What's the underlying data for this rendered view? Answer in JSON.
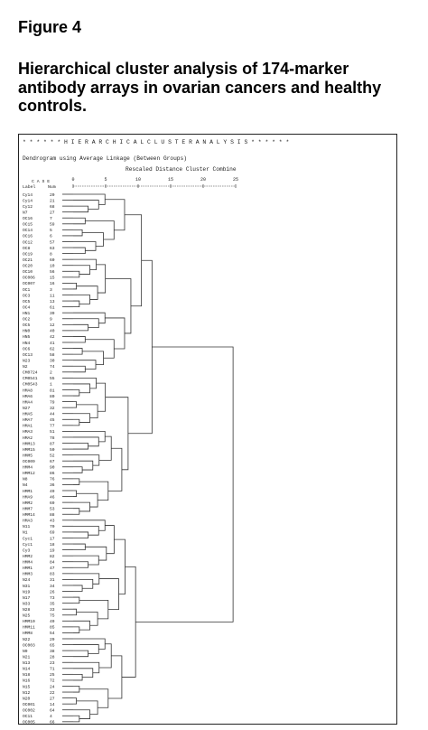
{
  "figure": {
    "label": "Figure 4",
    "title": "Hierarchical cluster analysis of 174-marker antibody arrays in ovarian cancers and healthy controls."
  },
  "dendrogram": {
    "banner": "* * * * * * H I E R A R C H I C A L   C L U S T E R   A N A L Y S I S * * * * * *",
    "method_line": "Dendrogram using Average Linkage (Between Groups)",
    "scale_caption": "Rescaled Distance Cluster Combine",
    "header_case": "C A S E",
    "header_label": "Label",
    "header_num": "Num",
    "axis_ticks": [
      "0",
      "5",
      "10",
      "15",
      "20",
      "25"
    ],
    "cases": [
      {
        "label": "Cy14",
        "num": "20"
      },
      {
        "label": "Cy14",
        "num": "21"
      },
      {
        "label": "Cy12",
        "num": "68"
      },
      {
        "label": "N7",
        "num": "27"
      },
      {
        "label": "OC16",
        "num": "7"
      },
      {
        "label": "OC15",
        "num": "59"
      },
      {
        "label": "OC14",
        "num": "5"
      },
      {
        "label": "OC16",
        "num": "6"
      },
      {
        "label": "OC12",
        "num": "57"
      },
      {
        "label": "OC8",
        "num": "63"
      },
      {
        "label": "OC19",
        "num": "8"
      },
      {
        "label": "OC21",
        "num": "60"
      },
      {
        "label": "OC20",
        "num": "10"
      },
      {
        "label": "OC10",
        "num": "56"
      },
      {
        "label": "OC006",
        "num": "15"
      },
      {
        "label": "OC007",
        "num": "16"
      },
      {
        "label": "OC1",
        "num": "3"
      },
      {
        "label": "OC3",
        "num": "11"
      },
      {
        "label": "OC5",
        "num": "13"
      },
      {
        "label": "OC4",
        "num": "61"
      },
      {
        "label": "HN1",
        "num": "39"
      },
      {
        "label": "OC2",
        "num": "9"
      },
      {
        "label": "OC5",
        "num": "12"
      },
      {
        "label": "HN0",
        "num": "40"
      },
      {
        "label": "HN5",
        "num": "42"
      },
      {
        "label": "HN4",
        "num": "41"
      },
      {
        "label": "OC6",
        "num": "62"
      },
      {
        "label": "OC13",
        "num": "58"
      },
      {
        "label": "N23",
        "num": "30"
      },
      {
        "label": "N2",
        "num": "74"
      },
      {
        "label": "CM0724",
        "num": "2"
      },
      {
        "label": "CM0541",
        "num": "55"
      },
      {
        "label": "CM0543",
        "num": "1"
      },
      {
        "label": "HMA8",
        "num": "81"
      },
      {
        "label": "HMA6",
        "num": "80"
      },
      {
        "label": "HMA4",
        "num": "79"
      },
      {
        "label": "N27",
        "num": "32"
      },
      {
        "label": "HMA5",
        "num": "44"
      },
      {
        "label": "HMA7",
        "num": "45"
      },
      {
        "label": "HMA1",
        "num": "77"
      },
      {
        "label": "HMA3",
        "num": "51"
      },
      {
        "label": "HMA2",
        "num": "78"
      },
      {
        "label": "HMM13",
        "num": "87"
      },
      {
        "label": "HMM15",
        "num": "50"
      },
      {
        "label": "HMM5",
        "num": "52"
      },
      {
        "label": "OC009",
        "num": "67"
      },
      {
        "label": "HMM4",
        "num": "90"
      },
      {
        "label": "HMM12",
        "num": "86"
      },
      {
        "label": "N8",
        "num": "76"
      },
      {
        "label": "N4",
        "num": "36"
      },
      {
        "label": "HMM1",
        "num": "49"
      },
      {
        "label": "HMA9",
        "num": "46"
      },
      {
        "label": "HMM2",
        "num": "69"
      },
      {
        "label": "HMM7",
        "num": "53"
      },
      {
        "label": "HMM14",
        "num": "88"
      },
      {
        "label": "HMA3",
        "num": "43"
      },
      {
        "label": "N11",
        "num": "70"
      },
      {
        "label": "N1",
        "num": "69"
      },
      {
        "label": "Cyc1",
        "num": "17"
      },
      {
        "label": "Cyc1",
        "num": "18"
      },
      {
        "label": "Cy3",
        "num": "19"
      },
      {
        "label": "HMM2",
        "num": "82"
      },
      {
        "label": "HMM4",
        "num": "84"
      },
      {
        "label": "HMM1",
        "num": "47"
      },
      {
        "label": "HMM3",
        "num": "83"
      },
      {
        "label": "N24",
        "num": "31"
      },
      {
        "label": "N31",
        "num": "34"
      },
      {
        "label": "N19",
        "num": "26"
      },
      {
        "label": "N17",
        "num": "73"
      },
      {
        "label": "N33",
        "num": "35"
      },
      {
        "label": "N28",
        "num": "33"
      },
      {
        "label": "N25",
        "num": "75"
      },
      {
        "label": "HMM10",
        "num": "49"
      },
      {
        "label": "HMM11",
        "num": "85"
      },
      {
        "label": "HMM8",
        "num": "54"
      },
      {
        "label": "N22",
        "num": "29"
      },
      {
        "label": "OC003",
        "num": "65"
      },
      {
        "label": "N9",
        "num": "38"
      },
      {
        "label": "N21",
        "num": "28"
      },
      {
        "label": "N13",
        "num": "23"
      },
      {
        "label": "N14",
        "num": "71"
      },
      {
        "label": "N18",
        "num": "25"
      },
      {
        "label": "N16",
        "num": "72"
      },
      {
        "label": "N15",
        "num": "24"
      },
      {
        "label": "N12",
        "num": "22"
      },
      {
        "label": "N20",
        "num": "27"
      },
      {
        "label": "OC001",
        "num": "14"
      },
      {
        "label": "OC002",
        "num": "64"
      },
      {
        "label": "OC11",
        "num": "4"
      },
      {
        "label": "OC005",
        "num": "66"
      }
    ]
  }
}
